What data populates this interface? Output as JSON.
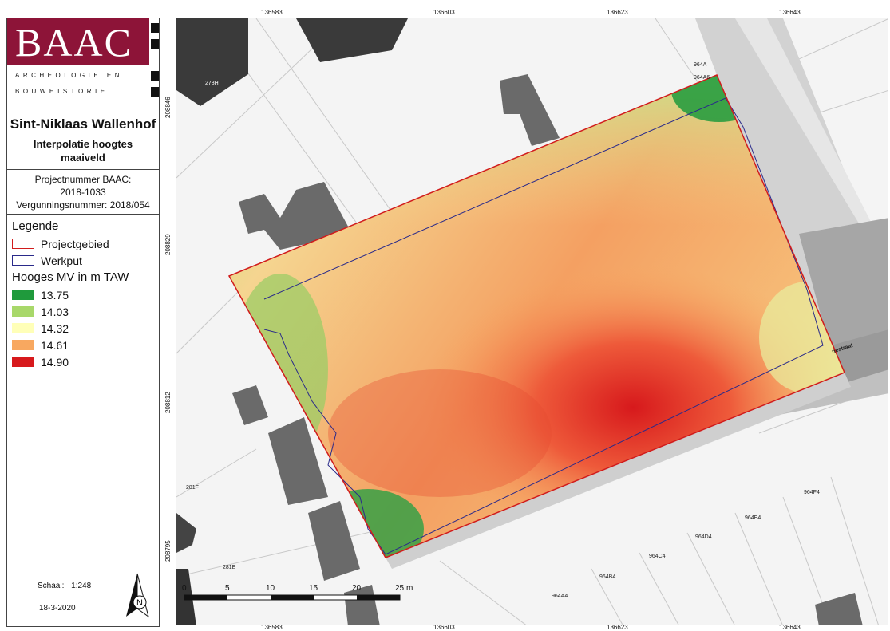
{
  "logo": {
    "name": "BAAC",
    "line1": "ARCHEOLOGIE EN",
    "line2": "BOUWHISTORIE"
  },
  "title": {
    "main": "Sint-Niklaas Wallenhof",
    "subtitle": "Interpolatie hoogtes maaiveld"
  },
  "project": {
    "line1": "Projectnummer BAAC:",
    "line2": "2018-1033",
    "line3": "Vergunningsnummer: 2018/054"
  },
  "legend": {
    "heading": "Legende",
    "items": [
      {
        "label": "Projectgebied",
        "outline": "#d11c1c"
      },
      {
        "label": "Werkput",
        "outline": "#2a2a8a"
      }
    ],
    "elevation_heading": "Hooges MV in m TAW",
    "classes": [
      {
        "label": "13.75",
        "color": "#1f9a3c"
      },
      {
        "label": "14.03",
        "color": "#a8d86a"
      },
      {
        "label": "14.32",
        "color": "#ffffb8"
      },
      {
        "label": "14.61",
        "color": "#f8a860"
      },
      {
        "label": "14.90",
        "color": "#d7191c"
      }
    ]
  },
  "scale": {
    "label": "Schaal:",
    "value": "1:248",
    "date": "18-3-2020"
  },
  "north_arrow": {
    "letter": "N",
    "icon": "north-arrow-icon"
  },
  "map": {
    "x_coords": [
      "136583",
      "136603",
      "136623",
      "136643"
    ],
    "y_coords": [
      "208846",
      "208829",
      "208812",
      "208795"
    ],
    "parcels": [
      "964A",
      "964A6",
      "278H",
      "281F",
      "281E",
      "964F4",
      "964E4",
      "964D4",
      "964C4",
      "964B4",
      "964A4"
    ],
    "street": "nestraat",
    "scalebar": {
      "ticks": [
        "0",
        "5",
        "10",
        "15",
        "20",
        "25"
      ],
      "unit": "m"
    }
  }
}
